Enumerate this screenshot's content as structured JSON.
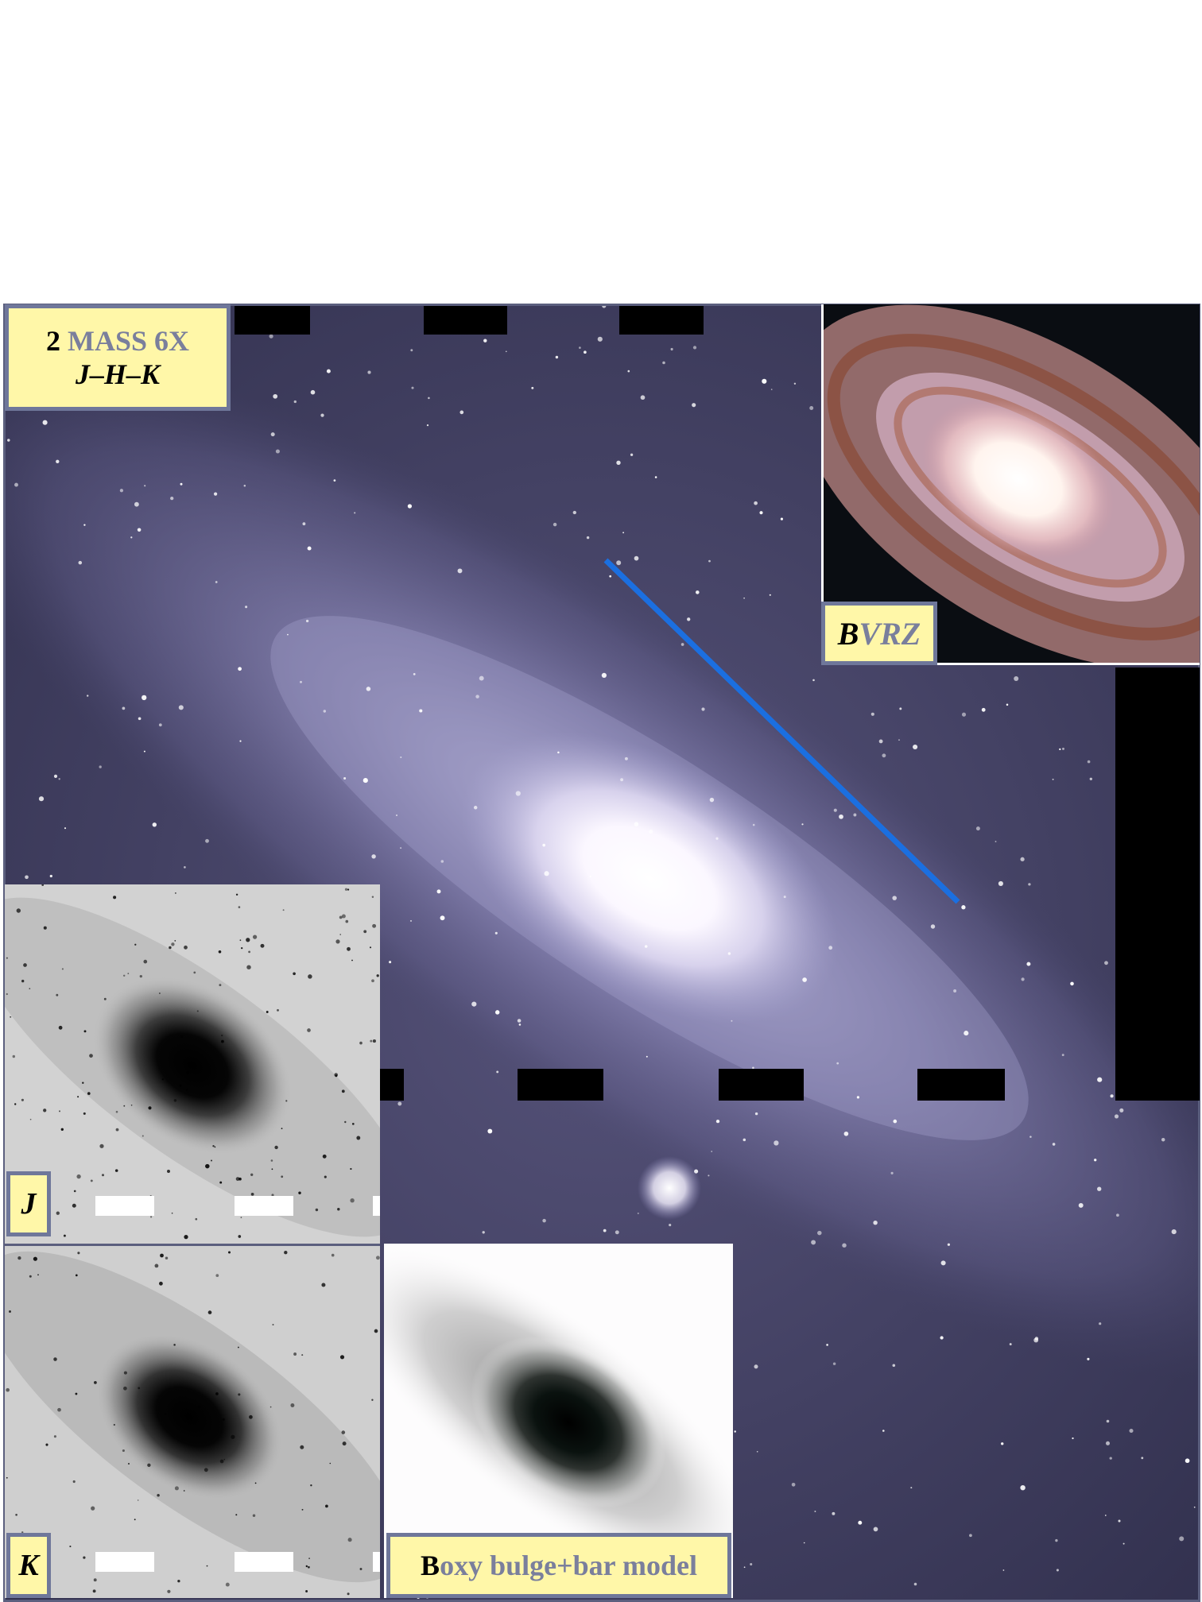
{
  "labels": {
    "twomass_num": "2",
    "twomass_rest": " MASS 6X",
    "twomass_bands": "J–H–K",
    "bvrz_b": "B",
    "bvrz_rest": "VRZ",
    "j_band": "J",
    "k_band": "K",
    "model_first": "B",
    "model_rest": "oxy bulge+bar model"
  },
  "colors": {
    "label_bg": "#fff7a8",
    "label_border": "#6f779a",
    "position_angle_line": "#1b6fe0"
  },
  "panels": [
    "2MASS 6X J-H-K color composite",
    "BVRZ optical color image",
    "J-band grayscale image",
    "K-band grayscale image",
    "Boxy bulge+bar model image"
  ]
}
